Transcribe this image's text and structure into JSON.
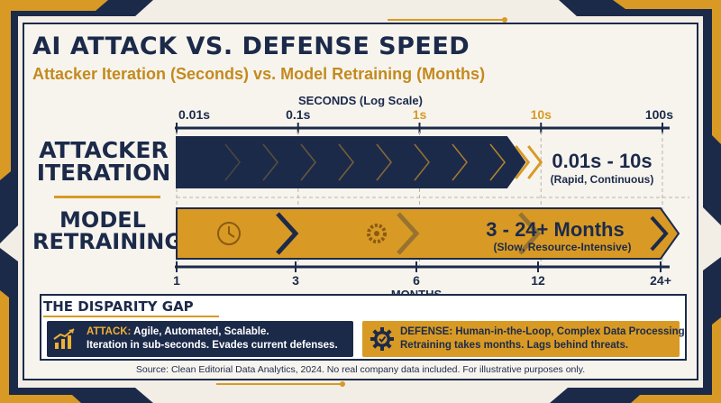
{
  "title": "AI ATTACK VS. DEFENSE SPEED",
  "subtitle": "Attacker Iteration (Seconds) vs. Model Retraining (Months)",
  "row_labels": {
    "attacker": [
      "ATTACKER",
      "ITERATION"
    ],
    "model": [
      "MODEL",
      "RETRAINING"
    ]
  },
  "chart_data": {
    "type": "bar",
    "top_axis": {
      "label": "SECONDS (Log Scale)",
      "scale": "log",
      "range": [
        0.01,
        100
      ],
      "ticks": [
        "0.01s",
        "0.1s",
        "1s",
        "10s",
        "100s"
      ],
      "tick_values": [
        0.01,
        0.1,
        1,
        10,
        100
      ],
      "highlight_ticks": [
        "1s",
        "10s"
      ]
    },
    "bottom_axis": {
      "label": "MONTHS",
      "ticks": [
        "1",
        "3",
        "6",
        "12",
        "24+"
      ]
    },
    "bars": [
      {
        "name": "Attacker Iteration",
        "axis": "seconds",
        "start": 0.01,
        "end": 10,
        "value_label": "0.01s - 10s",
        "note": "(Rapid, Continuous)",
        "color": "#1c2a4a"
      },
      {
        "name": "Model Retraining",
        "axis": "months",
        "start": 3,
        "end": 24,
        "value_label": "3 - 24+ Months",
        "note": "(Slow, Resource-Intensive)",
        "color": "#d89a24"
      }
    ]
  },
  "gap": {
    "title": "THE DISPARITY GAP",
    "attack": {
      "icon": "trend-up-chart-icon",
      "accent": "ATTACK:",
      "line1": " Agile, Automated, Scalable.",
      "line2": "Iteration in sub-seconds. Evades current defenses."
    },
    "defense": {
      "icon": "gear-check-icon",
      "line1": "DEFENSE: Human-in-the-Loop, Complex Data Processing.",
      "line2": "Retraining takes months. Lags behind threats."
    }
  },
  "source": "Source: Clean Editorial Data Analytics, 2024. No real company data included. For illustrative purposes only.",
  "colors": {
    "navy": "#1c2a4a",
    "gold": "#d89a24",
    "cream": "#f2eee6"
  }
}
